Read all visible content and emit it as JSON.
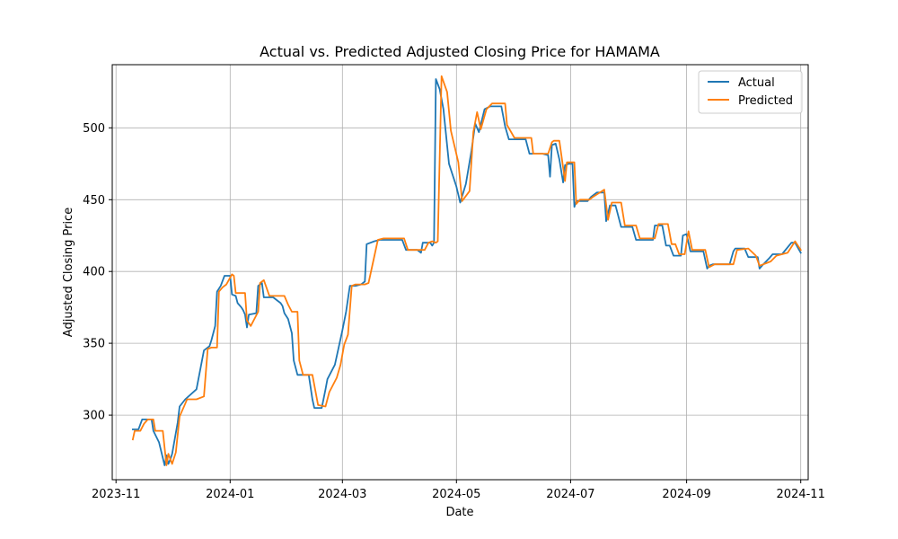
{
  "chart_data": {
    "type": "line",
    "title": "Actual vs. Predicted Adjusted Closing Price for HAMAMA",
    "xlabel": "Date",
    "ylabel": "Adjusted Closing Price",
    "x_axis_type": "date",
    "xlim": [
      "2023-10-30",
      "2024-11-05"
    ],
    "ylim": [
      255,
      544
    ],
    "x_ticks": [
      "2023-11-01",
      "2024-01-01",
      "2024-03-01",
      "2024-05-01",
      "2024-07-01",
      "2024-09-01",
      "2024-11-01"
    ],
    "x_tick_labels": [
      "2023-11",
      "2024-01",
      "2024-03",
      "2024-05",
      "2024-07",
      "2024-09",
      "2024-11"
    ],
    "y_ticks": [
      300,
      350,
      400,
      450,
      500
    ],
    "y_tick_labels": [
      "300",
      "350",
      "400",
      "450",
      "500"
    ],
    "grid": true,
    "legend_position": "upper right",
    "series": [
      {
        "name": "Actual",
        "color": "#1f77b4",
        "points": [
          [
            "2023-11-10",
            290
          ],
          [
            "2023-11-13",
            290
          ],
          [
            "2023-11-15",
            297
          ],
          [
            "2023-11-20",
            297
          ],
          [
            "2023-11-21",
            289
          ],
          [
            "2023-11-24",
            281
          ],
          [
            "2023-11-27",
            265
          ],
          [
            "2023-11-28",
            272
          ],
          [
            "2023-11-29",
            266
          ],
          [
            "2023-11-30",
            269
          ],
          [
            "2023-12-01",
            273
          ],
          [
            "2023-12-04",
            295
          ],
          [
            "2023-12-05",
            306
          ],
          [
            "2023-12-08",
            311
          ],
          [
            "2023-12-14",
            318
          ],
          [
            "2023-12-18",
            345
          ],
          [
            "2023-12-21",
            348
          ],
          [
            "2023-12-22",
            352
          ],
          [
            "2023-12-24",
            362
          ],
          [
            "2023-12-25",
            386
          ],
          [
            "2023-12-27",
            390
          ],
          [
            "2023-12-29",
            397
          ],
          [
            "2024-01-01",
            397
          ],
          [
            "2024-01-02",
            384
          ],
          [
            "2024-01-04",
            383
          ],
          [
            "2024-01-05",
            378
          ],
          [
            "2024-01-07",
            375
          ],
          [
            "2024-01-08",
            373
          ],
          [
            "2024-01-09",
            370
          ],
          [
            "2024-01-10",
            361
          ],
          [
            "2024-01-11",
            370
          ],
          [
            "2024-01-15",
            371
          ],
          [
            "2024-01-16",
            390
          ],
          [
            "2024-01-18",
            392
          ],
          [
            "2024-01-19",
            382
          ],
          [
            "2024-01-24",
            382
          ],
          [
            "2024-01-28",
            378
          ],
          [
            "2024-01-29",
            376
          ],
          [
            "2024-01-30",
            371
          ],
          [
            "2024-02-01",
            367
          ],
          [
            "2024-02-03",
            357
          ],
          [
            "2024-02-04",
            338
          ],
          [
            "2024-02-06",
            328
          ],
          [
            "2024-02-12",
            328
          ],
          [
            "2024-02-14",
            311
          ],
          [
            "2024-02-15",
            305
          ],
          [
            "2024-02-19",
            305
          ],
          [
            "2024-02-21",
            318
          ],
          [
            "2024-02-22",
            325
          ],
          [
            "2024-02-26",
            335
          ],
          [
            "2024-02-28",
            347
          ],
          [
            "2024-03-01",
            359
          ],
          [
            "2024-03-03",
            372
          ],
          [
            "2024-03-05",
            390
          ],
          [
            "2024-03-08",
            390
          ],
          [
            "2024-03-11",
            391
          ],
          [
            "2024-03-13",
            393
          ],
          [
            "2024-03-14",
            419
          ],
          [
            "2024-03-18",
            421
          ],
          [
            "2024-03-21",
            422
          ],
          [
            "2024-04-02",
            422
          ],
          [
            "2024-04-04",
            415
          ],
          [
            "2024-04-10",
            415
          ],
          [
            "2024-04-12",
            413
          ],
          [
            "2024-04-13",
            420
          ],
          [
            "2024-04-17",
            420
          ],
          [
            "2024-04-18",
            418
          ],
          [
            "2024-04-19",
            420
          ],
          [
            "2024-04-20",
            534
          ],
          [
            "2024-04-22",
            527
          ],
          [
            "2024-04-24",
            513
          ],
          [
            "2024-04-27",
            475
          ],
          [
            "2024-05-01",
            459
          ],
          [
            "2024-05-03",
            448
          ],
          [
            "2024-05-06",
            461
          ],
          [
            "2024-05-09",
            484
          ],
          [
            "2024-05-11",
            503
          ],
          [
            "2024-05-13",
            497
          ],
          [
            "2024-05-16",
            513
          ],
          [
            "2024-05-19",
            515
          ],
          [
            "2024-05-25",
            515
          ],
          [
            "2024-05-27",
            501
          ],
          [
            "2024-05-29",
            492
          ],
          [
            "2024-06-07",
            492
          ],
          [
            "2024-06-09",
            482
          ],
          [
            "2024-06-16",
            482
          ],
          [
            "2024-06-19",
            481
          ],
          [
            "2024-06-20",
            466
          ],
          [
            "2024-06-21",
            488
          ],
          [
            "2024-06-23",
            489
          ],
          [
            "2024-06-25",
            478
          ],
          [
            "2024-06-27",
            462
          ],
          [
            "2024-06-28",
            474
          ],
          [
            "2024-06-30",
            475
          ],
          [
            "2024-07-02",
            475
          ],
          [
            "2024-07-03",
            445
          ],
          [
            "2024-07-04",
            449
          ],
          [
            "2024-07-10",
            449
          ],
          [
            "2024-07-12",
            452
          ],
          [
            "2024-07-15",
            455
          ],
          [
            "2024-07-19",
            455
          ],
          [
            "2024-07-20",
            435
          ],
          [
            "2024-07-22",
            446
          ],
          [
            "2024-07-25",
            446
          ],
          [
            "2024-07-28",
            431
          ],
          [
            "2024-08-03",
            431
          ],
          [
            "2024-08-05",
            422
          ],
          [
            "2024-08-14",
            422
          ],
          [
            "2024-08-15",
            432
          ],
          [
            "2024-08-19",
            432
          ],
          [
            "2024-08-21",
            418
          ],
          [
            "2024-08-23",
            418
          ],
          [
            "2024-08-25",
            411
          ],
          [
            "2024-08-29",
            411
          ],
          [
            "2024-08-30",
            425
          ],
          [
            "2024-09-01",
            426
          ],
          [
            "2024-09-03",
            414
          ],
          [
            "2024-09-10",
            414
          ],
          [
            "2024-09-12",
            402
          ],
          [
            "2024-09-13",
            404
          ],
          [
            "2024-09-15",
            405
          ],
          [
            "2024-09-24",
            405
          ],
          [
            "2024-09-26",
            414
          ],
          [
            "2024-09-27",
            416
          ],
          [
            "2024-10-02",
            416
          ],
          [
            "2024-10-04",
            410
          ],
          [
            "2024-10-09",
            410
          ],
          [
            "2024-10-10",
            402
          ],
          [
            "2024-10-12",
            405
          ],
          [
            "2024-10-15",
            409
          ],
          [
            "2024-10-17",
            412
          ],
          [
            "2024-10-22",
            412
          ],
          [
            "2024-10-27",
            420
          ],
          [
            "2024-10-29",
            420
          ],
          [
            "2024-11-01",
            413
          ]
        ]
      },
      {
        "name": "Predicted",
        "color": "#ff7f0e",
        "points": [
          [
            "2023-11-10",
            283
          ],
          [
            "2023-11-11",
            289
          ],
          [
            "2023-11-14",
            289
          ],
          [
            "2023-11-16",
            294
          ],
          [
            "2023-11-18",
            297
          ],
          [
            "2023-11-21",
            297
          ],
          [
            "2023-11-22",
            289
          ],
          [
            "2023-11-26",
            289
          ],
          [
            "2023-11-28",
            265
          ],
          [
            "2023-11-29",
            273
          ],
          [
            "2023-12-01",
            266
          ],
          [
            "2023-12-03",
            274
          ],
          [
            "2023-12-05",
            299
          ],
          [
            "2023-12-08",
            308
          ],
          [
            "2023-12-09",
            311
          ],
          [
            "2023-12-14",
            311
          ],
          [
            "2023-12-18",
            313
          ],
          [
            "2023-12-20",
            346
          ],
          [
            "2023-12-22",
            347
          ],
          [
            "2023-12-25",
            347
          ],
          [
            "2023-12-26",
            386
          ],
          [
            "2023-12-28",
            389
          ],
          [
            "2023-12-30",
            391
          ],
          [
            "2024-01-02",
            398
          ],
          [
            "2024-01-03",
            397
          ],
          [
            "2024-01-04",
            385
          ],
          [
            "2024-01-09",
            385
          ],
          [
            "2024-01-10",
            366
          ],
          [
            "2024-01-12",
            362
          ],
          [
            "2024-01-16",
            372
          ],
          [
            "2024-01-17",
            392
          ],
          [
            "2024-01-19",
            394
          ],
          [
            "2024-01-22",
            383
          ],
          [
            "2024-01-30",
            383
          ],
          [
            "2024-02-01",
            377
          ],
          [
            "2024-02-03",
            372
          ],
          [
            "2024-02-06",
            372
          ],
          [
            "2024-02-07",
            338
          ],
          [
            "2024-02-09",
            328
          ],
          [
            "2024-02-14",
            328
          ],
          [
            "2024-02-17",
            307
          ],
          [
            "2024-02-21",
            306
          ],
          [
            "2024-02-23",
            316
          ],
          [
            "2024-02-27",
            326
          ],
          [
            "2024-02-29",
            335
          ],
          [
            "2024-03-02",
            349
          ],
          [
            "2024-03-04",
            356
          ],
          [
            "2024-03-06",
            390
          ],
          [
            "2024-03-08",
            391
          ],
          [
            "2024-03-11",
            391
          ],
          [
            "2024-03-13",
            391
          ],
          [
            "2024-03-15",
            392
          ],
          [
            "2024-03-20",
            422
          ],
          [
            "2024-03-23",
            423
          ],
          [
            "2024-04-03",
            423
          ],
          [
            "2024-04-05",
            415
          ],
          [
            "2024-04-14",
            415
          ],
          [
            "2024-04-16",
            420
          ],
          [
            "2024-04-18",
            421
          ],
          [
            "2024-04-20",
            420
          ],
          [
            "2024-04-21",
            421
          ],
          [
            "2024-04-23",
            536
          ],
          [
            "2024-04-26",
            525
          ],
          [
            "2024-04-28",
            498
          ],
          [
            "2024-05-02",
            476
          ],
          [
            "2024-05-04",
            449
          ],
          [
            "2024-05-08",
            456
          ],
          [
            "2024-05-10",
            497
          ],
          [
            "2024-05-12",
            511
          ],
          [
            "2024-05-14",
            499
          ],
          [
            "2024-05-17",
            513
          ],
          [
            "2024-05-20",
            517
          ],
          [
            "2024-05-27",
            517
          ],
          [
            "2024-05-28",
            502
          ],
          [
            "2024-06-01",
            493
          ],
          [
            "2024-06-10",
            493
          ],
          [
            "2024-06-11",
            482
          ],
          [
            "2024-06-19",
            482
          ],
          [
            "2024-06-21",
            490
          ],
          [
            "2024-06-22",
            491
          ],
          [
            "2024-06-25",
            491
          ],
          [
            "2024-06-28",
            463
          ],
          [
            "2024-06-29",
            476
          ],
          [
            "2024-07-03",
            476
          ],
          [
            "2024-07-04",
            447
          ],
          [
            "2024-07-06",
            450
          ],
          [
            "2024-07-11",
            450
          ],
          [
            "2024-07-13",
            452
          ],
          [
            "2024-07-19",
            457
          ],
          [
            "2024-07-21",
            436
          ],
          [
            "2024-07-23",
            448
          ],
          [
            "2024-07-28",
            448
          ],
          [
            "2024-07-30",
            432
          ],
          [
            "2024-08-05",
            432
          ],
          [
            "2024-08-07",
            423
          ],
          [
            "2024-08-15",
            423
          ],
          [
            "2024-08-17",
            433
          ],
          [
            "2024-08-22",
            433
          ],
          [
            "2024-08-24",
            419
          ],
          [
            "2024-08-26",
            419
          ],
          [
            "2024-08-28",
            412
          ],
          [
            "2024-08-31",
            412
          ],
          [
            "2024-09-02",
            428
          ],
          [
            "2024-09-04",
            415
          ],
          [
            "2024-09-11",
            415
          ],
          [
            "2024-09-13",
            403
          ],
          [
            "2024-09-16",
            405
          ],
          [
            "2024-09-26",
            405
          ],
          [
            "2024-09-28",
            415
          ],
          [
            "2024-10-04",
            416
          ],
          [
            "2024-10-08",
            411
          ],
          [
            "2024-10-10",
            404
          ],
          [
            "2024-10-14",
            406
          ],
          [
            "2024-10-16",
            407
          ],
          [
            "2024-10-19",
            411
          ],
          [
            "2024-10-25",
            413
          ],
          [
            "2024-10-29",
            421
          ],
          [
            "2024-11-01",
            415
          ]
        ]
      }
    ]
  }
}
